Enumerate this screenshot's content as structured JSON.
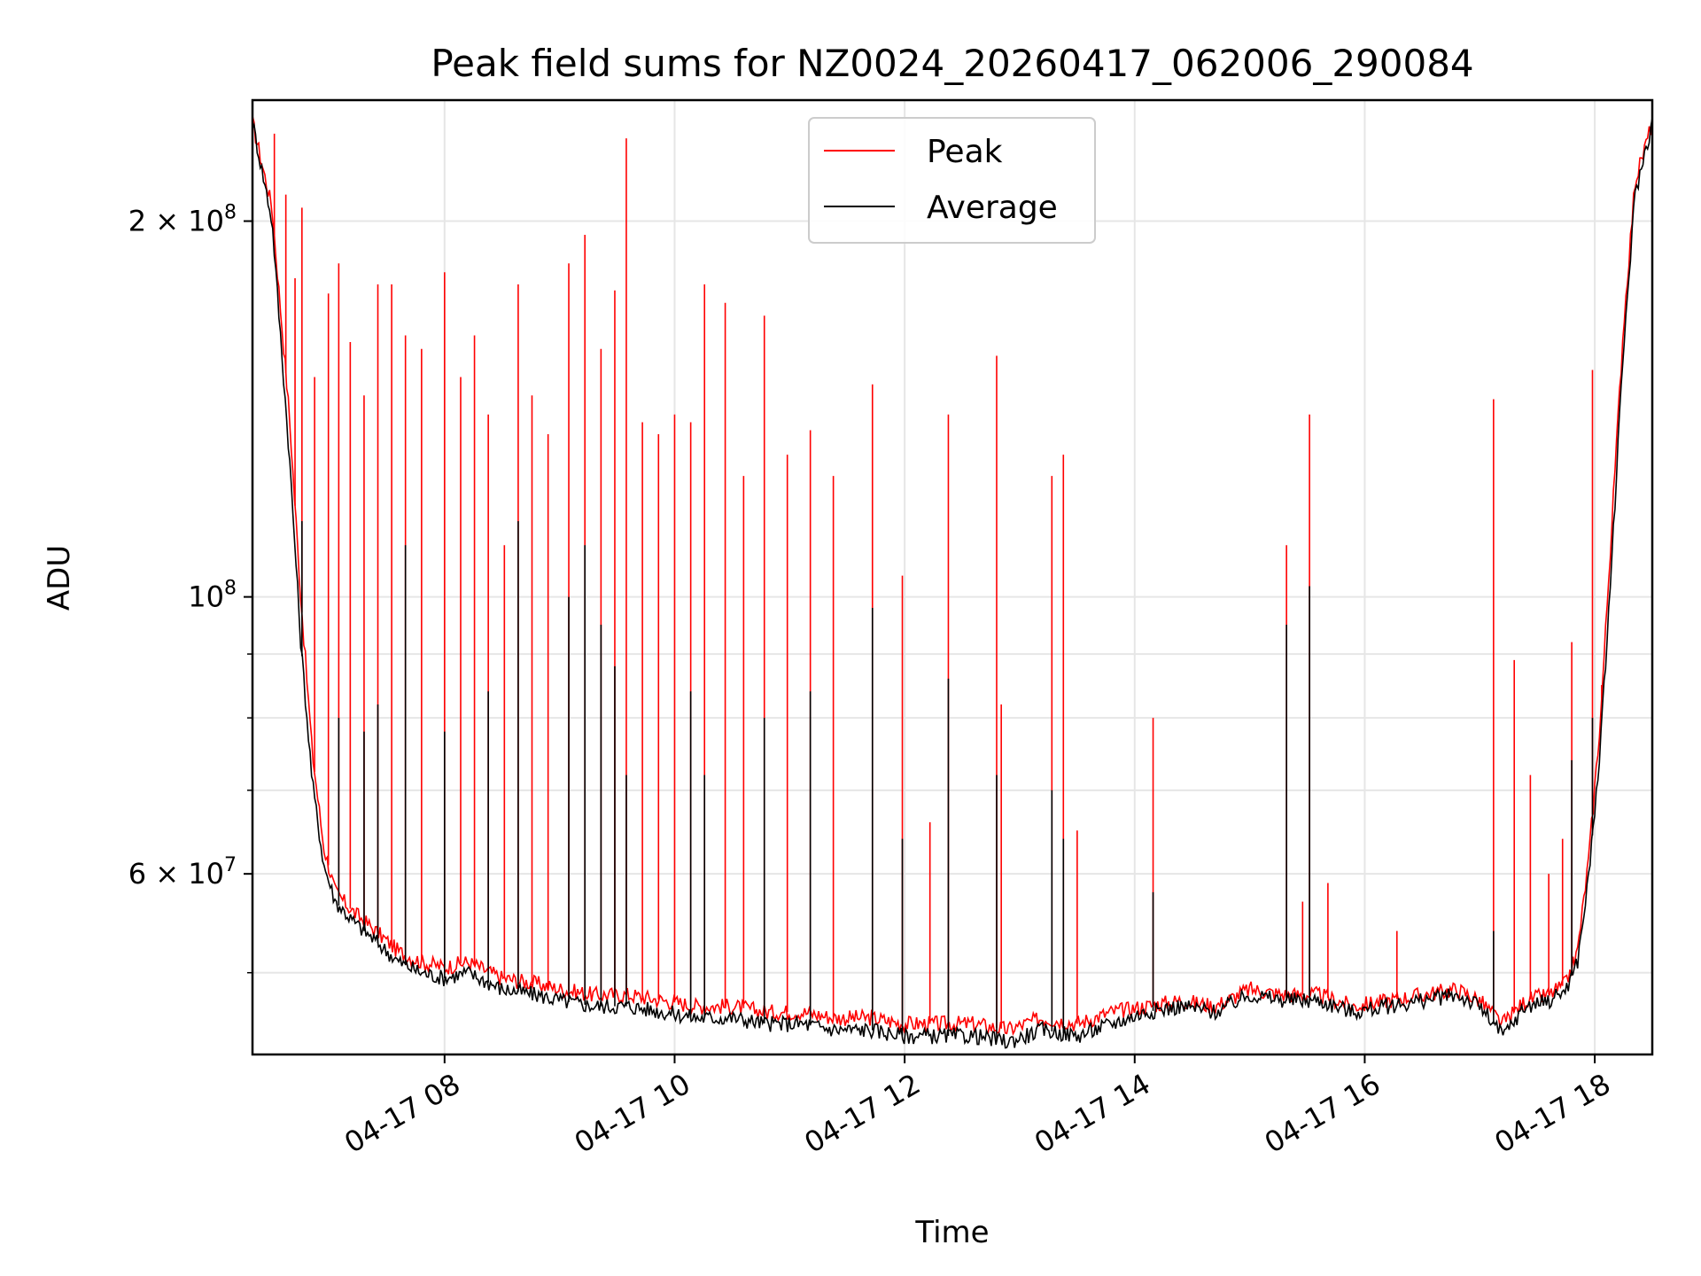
{
  "chart_data": {
    "type": "line",
    "title": "Peak field sums for NZ0024_20260417_062006_290084",
    "xlabel": "Time",
    "ylabel": "ADU",
    "y_scale": "log",
    "xlim": [
      6.33,
      18.5
    ],
    "ylim": [
      43000000,
      250000000
    ],
    "x_ticks": [
      {
        "x": 8,
        "label": "04-17 08"
      },
      {
        "x": 10,
        "label": "04-17 10"
      },
      {
        "x": 12,
        "label": "04-17 12"
      },
      {
        "x": 14,
        "label": "04-17 14"
      },
      {
        "x": 16,
        "label": "04-17 16"
      },
      {
        "x": 18,
        "label": "04-17 18"
      }
    ],
    "y_major_ticks": [
      {
        "y": 60000000,
        "base": "6",
        "times": "×",
        "ten": "10",
        "exp": "7"
      },
      {
        "y": 100000000,
        "base": "",
        "times": "",
        "ten": "10",
        "exp": "8"
      },
      {
        "y": 200000000,
        "base": "2",
        "times": "×",
        "ten": "10",
        "exp": "8"
      }
    ],
    "y_minor_ticks": [
      50000000,
      70000000,
      80000000,
      90000000
    ],
    "grid": true,
    "legend_position": "upper center",
    "series": [
      {
        "name": "Peak",
        "color": "#ff0000",
        "x": [
          6.33,
          6.5,
          6.65,
          6.75,
          6.85,
          6.95,
          7.05,
          7.2,
          7.4,
          7.6,
          7.8,
          8.0,
          8.2,
          8.5,
          8.8,
          9.0,
          9.3,
          9.6,
          9.9,
          10.2,
          10.5,
          10.8,
          11.1,
          11.4,
          11.7,
          12.0,
          12.3,
          12.6,
          12.9,
          13.2,
          13.5,
          13.8,
          14.1,
          14.4,
          14.7,
          15.0,
          15.3,
          15.6,
          15.9,
          16.2,
          16.5,
          16.8,
          17.0,
          17.2,
          17.4,
          17.6,
          17.75,
          17.85,
          17.95,
          18.05,
          18.15,
          18.25,
          18.35,
          18.5
        ],
        "y": [
          240000000,
          205000000,
          140000000,
          100000000,
          75000000,
          63000000,
          58000000,
          56000000,
          54000000,
          52000000,
          51000000,
          50500000,
          51000000,
          49500000,
          49000000,
          48500000,
          48000000,
          48000000,
          47500000,
          47000000,
          47000000,
          46500000,
          46500000,
          46000000,
          46000000,
          45500000,
          45500000,
          45500000,
          45000000,
          46000000,
          45500000,
          46500000,
          47000000,
          47500000,
          47000000,
          48500000,
          48000000,
          48000000,
          47000000,
          47500000,
          48000000,
          48500000,
          47500000,
          45500000,
          47500000,
          48000000,
          49000000,
          52000000,
          62000000,
          80000000,
          115000000,
          165000000,
          215000000,
          240000000
        ],
        "spikes": [
          {
            "x": 6.52,
            "y": 235000000
          },
          {
            "x": 6.62,
            "y": 210000000
          },
          {
            "x": 6.7,
            "y": 180000000
          },
          {
            "x": 6.76,
            "y": 205000000
          },
          {
            "x": 6.87,
            "y": 150000000
          },
          {
            "x": 6.99,
            "y": 175000000
          },
          {
            "x": 7.08,
            "y": 185000000
          },
          {
            "x": 7.18,
            "y": 160000000
          },
          {
            "x": 7.3,
            "y": 145000000
          },
          {
            "x": 7.42,
            "y": 178000000
          },
          {
            "x": 7.54,
            "y": 178000000
          },
          {
            "x": 7.66,
            "y": 162000000
          },
          {
            "x": 7.8,
            "y": 158000000
          },
          {
            "x": 8.0,
            "y": 182000000
          },
          {
            "x": 8.14,
            "y": 150000000
          },
          {
            "x": 8.26,
            "y": 162000000
          },
          {
            "x": 8.38,
            "y": 140000000
          },
          {
            "x": 8.52,
            "y": 110000000
          },
          {
            "x": 8.64,
            "y": 178000000
          },
          {
            "x": 8.76,
            "y": 145000000
          },
          {
            "x": 8.9,
            "y": 135000000
          },
          {
            "x": 9.08,
            "y": 185000000
          },
          {
            "x": 9.22,
            "y": 195000000
          },
          {
            "x": 9.36,
            "y": 158000000
          },
          {
            "x": 9.48,
            "y": 176000000
          },
          {
            "x": 9.58,
            "y": 233000000
          },
          {
            "x": 9.72,
            "y": 138000000
          },
          {
            "x": 9.86,
            "y": 135000000
          },
          {
            "x": 10.0,
            "y": 140000000
          },
          {
            "x": 10.14,
            "y": 138000000
          },
          {
            "x": 10.26,
            "y": 178000000
          },
          {
            "x": 10.44,
            "y": 172000000
          },
          {
            "x": 10.6,
            "y": 125000000
          },
          {
            "x": 10.78,
            "y": 168000000
          },
          {
            "x": 10.98,
            "y": 130000000
          },
          {
            "x": 11.18,
            "y": 136000000
          },
          {
            "x": 11.38,
            "y": 125000000
          },
          {
            "x": 11.72,
            "y": 148000000
          },
          {
            "x": 11.98,
            "y": 104000000
          },
          {
            "x": 12.22,
            "y": 66000000
          },
          {
            "x": 12.38,
            "y": 140000000
          },
          {
            "x": 12.8,
            "y": 156000000
          },
          {
            "x": 12.84,
            "y": 82000000
          },
          {
            "x": 13.28,
            "y": 125000000
          },
          {
            "x": 13.38,
            "y": 130000000
          },
          {
            "x": 13.5,
            "y": 65000000
          },
          {
            "x": 14.16,
            "y": 80000000
          },
          {
            "x": 15.32,
            "y": 110000000
          },
          {
            "x": 15.46,
            "y": 57000000
          },
          {
            "x": 15.52,
            "y": 140000000
          },
          {
            "x": 15.68,
            "y": 59000000
          },
          {
            "x": 16.28,
            "y": 54000000
          },
          {
            "x": 17.12,
            "y": 144000000
          },
          {
            "x": 17.3,
            "y": 89000000
          },
          {
            "x": 17.44,
            "y": 72000000
          },
          {
            "x": 17.6,
            "y": 60000000
          },
          {
            "x": 17.72,
            "y": 64000000
          },
          {
            "x": 17.8,
            "y": 92000000
          },
          {
            "x": 17.98,
            "y": 152000000
          },
          {
            "x": 18.06,
            "y": 85000000
          }
        ]
      },
      {
        "name": "Average",
        "color": "#000000",
        "x": [
          6.33,
          6.5,
          6.65,
          6.75,
          6.85,
          6.95,
          7.05,
          7.2,
          7.4,
          7.6,
          7.8,
          8.0,
          8.2,
          8.5,
          8.8,
          9.0,
          9.3,
          9.6,
          9.9,
          10.2,
          10.5,
          10.8,
          11.1,
          11.4,
          11.7,
          12.0,
          12.3,
          12.6,
          12.9,
          13.2,
          13.5,
          13.8,
          14.1,
          14.4,
          14.7,
          15.0,
          15.3,
          15.6,
          15.9,
          16.2,
          16.5,
          16.8,
          17.0,
          17.2,
          17.4,
          17.6,
          17.75,
          17.85,
          17.95,
          18.05,
          18.15,
          18.25,
          18.35,
          18.5
        ],
        "y": [
          240000000,
          200000000,
          130000000,
          92000000,
          71000000,
          61000000,
          57000000,
          55000000,
          53000000,
          51000000,
          50000000,
          49500000,
          50000000,
          48500000,
          48000000,
          47500000,
          47000000,
          47000000,
          46500000,
          46000000,
          46000000,
          45500000,
          45500000,
          45000000,
          45000000,
          44500000,
          44500000,
          44500000,
          44000000,
          45000000,
          44500000,
          45500000,
          46500000,
          47000000,
          46500000,
          48000000,
          47500000,
          47500000,
          46500000,
          47000000,
          47500000,
          48000000,
          47000000,
          44500000,
          47000000,
          47500000,
          48500000,
          51000000,
          60000000,
          76000000,
          108000000,
          158000000,
          210000000,
          240000000
        ],
        "spikes": [
          {
            "x": 6.76,
            "y": 115000000
          },
          {
            "x": 7.08,
            "y": 80000000
          },
          {
            "x": 7.3,
            "y": 78000000
          },
          {
            "x": 7.42,
            "y": 82000000
          },
          {
            "x": 7.66,
            "y": 110000000
          },
          {
            "x": 8.0,
            "y": 78000000
          },
          {
            "x": 8.38,
            "y": 84000000
          },
          {
            "x": 8.64,
            "y": 115000000
          },
          {
            "x": 9.08,
            "y": 100000000
          },
          {
            "x": 9.22,
            "y": 110000000
          },
          {
            "x": 9.36,
            "y": 95000000
          },
          {
            "x": 9.48,
            "y": 88000000
          },
          {
            "x": 9.58,
            "y": 72000000
          },
          {
            "x": 10.14,
            "y": 84000000
          },
          {
            "x": 10.26,
            "y": 72000000
          },
          {
            "x": 10.78,
            "y": 80000000
          },
          {
            "x": 11.18,
            "y": 84000000
          },
          {
            "x": 11.72,
            "y": 98000000
          },
          {
            "x": 11.98,
            "y": 64000000
          },
          {
            "x": 12.38,
            "y": 86000000
          },
          {
            "x": 12.8,
            "y": 72000000
          },
          {
            "x": 13.28,
            "y": 70000000
          },
          {
            "x": 13.38,
            "y": 64000000
          },
          {
            "x": 14.16,
            "y": 58000000
          },
          {
            "x": 15.32,
            "y": 95000000
          },
          {
            "x": 15.52,
            "y": 102000000
          },
          {
            "x": 17.12,
            "y": 54000000
          },
          {
            "x": 17.8,
            "y": 74000000
          },
          {
            "x": 17.98,
            "y": 80000000
          }
        ]
      }
    ]
  }
}
